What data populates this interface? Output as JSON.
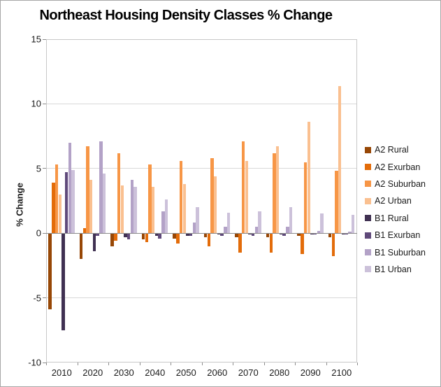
{
  "chart_data": {
    "type": "bar",
    "title": "Northeast Housing Density Classes % Change",
    "ylabel": "% Change",
    "xlabel": "",
    "categories": [
      "2010",
      "2020",
      "2030",
      "2040",
      "2050",
      "2060",
      "2070",
      "2080",
      "2090",
      "2100"
    ],
    "series": [
      {
        "name": "A2 Rural",
        "color": "#974706",
        "values": [
          -5.9,
          -2.0,
          -1.0,
          -0.5,
          -0.4,
          -0.3,
          -0.3,
          -0.3,
          -0.2,
          -0.3
        ]
      },
      {
        "name": "A2 Exurban",
        "color": "#E36C0A",
        "values": [
          3.9,
          0.4,
          -0.6,
          -0.7,
          -0.8,
          -1.0,
          -1.5,
          -1.5,
          -1.6,
          -1.8
        ]
      },
      {
        "name": "A2 Suburban",
        "color": "#F79646",
        "values": [
          5.3,
          6.7,
          6.2,
          5.3,
          5.6,
          5.8,
          7.1,
          6.2,
          5.5,
          4.8
        ]
      },
      {
        "name": "A2 Urban",
        "color": "#FAC090",
        "values": [
          3.0,
          4.1,
          3.7,
          3.6,
          3.8,
          4.4,
          5.6,
          6.7,
          8.6,
          11.4
        ]
      },
      {
        "name": "B1 Rural",
        "color": "#403152",
        "values": [
          -7.5,
          -1.4,
          -0.3,
          -0.2,
          -0.2,
          -0.1,
          -0.1,
          -0.1,
          -0.1,
          -0.1
        ]
      },
      {
        "name": "B1 Exurban",
        "color": "#5F497A",
        "values": [
          4.7,
          -0.2,
          -0.5,
          -0.4,
          -0.2,
          -0.2,
          -0.2,
          -0.2,
          -0.1,
          -0.1
        ]
      },
      {
        "name": "B1 Suburban",
        "color": "#B3A2C7",
        "values": [
          7.0,
          7.1,
          4.1,
          1.7,
          0.8,
          0.5,
          0.5,
          0.5,
          0.2,
          0.1
        ]
      },
      {
        "name": "B1 Urban",
        "color": "#CCC1DA",
        "values": [
          4.9,
          4.6,
          3.6,
          2.6,
          2.0,
          1.6,
          1.7,
          2.0,
          1.5,
          1.4
        ]
      }
    ],
    "ylim": [
      -10,
      15
    ],
    "yticks": [
      15,
      10,
      5,
      0,
      -5,
      -10
    ],
    "grid": true,
    "legend_position": "right"
  }
}
